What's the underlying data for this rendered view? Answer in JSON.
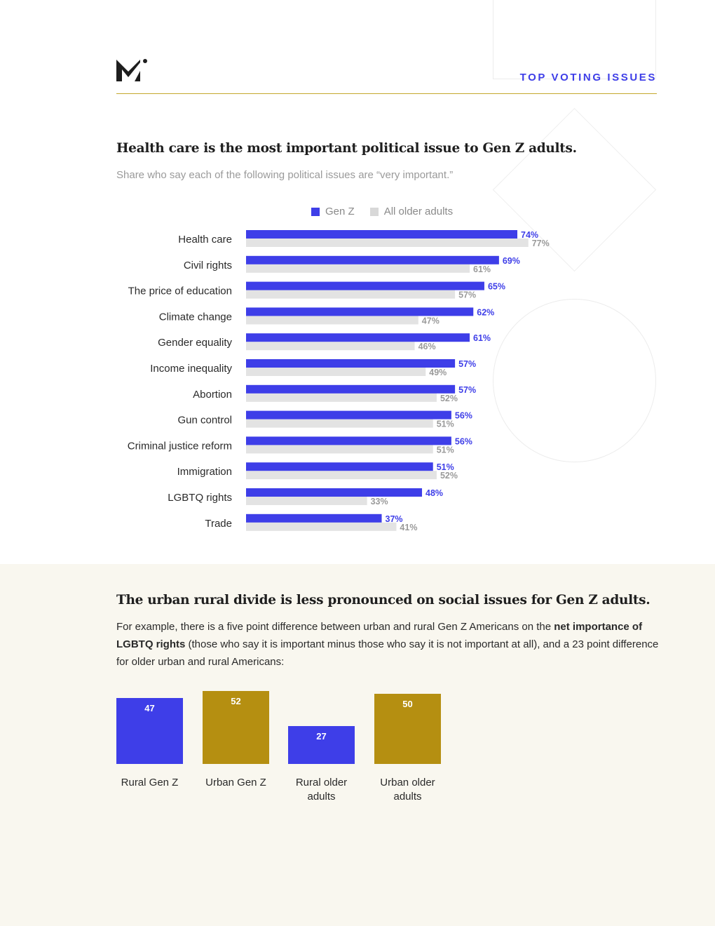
{
  "header": {
    "section_tag": "TOP VOTING ISSUES"
  },
  "colors": {
    "gen_z": "#3e3ee8",
    "older": "#e3e3e3",
    "older_label": "#9a9a9a",
    "urban": "#b58f11",
    "accent_rule": "#c5a72c"
  },
  "chart1": {
    "title": "Health care is the most important political issue to Gen Z adults.",
    "subtitle": "Share who say each of the following political issues are “very important.”"
  },
  "chart_data": [
    {
      "type": "bar",
      "orientation": "horizontal",
      "title": "Health care is the most important political issue to Gen Z adults.",
      "subtitle": "Share who say each of the following political issues are “very important.”",
      "legend_position": "top-center",
      "categories": [
        "Health care",
        "Civil rights",
        "The price of education",
        "Climate change",
        "Gender equality",
        "Income inequality",
        "Abortion",
        "Gun control",
        "Criminal justice reform",
        "Immigration",
        "LGBTQ rights",
        "Trade"
      ],
      "series": [
        {
          "name": "Gen Z",
          "values": [
            74,
            69,
            65,
            62,
            61,
            57,
            57,
            56,
            56,
            51,
            48,
            37
          ]
        },
        {
          "name": "All older adults",
          "values": [
            77,
            61,
            57,
            47,
            46,
            49,
            52,
            51,
            51,
            52,
            33,
            41
          ]
        }
      ],
      "value_suffix": "%",
      "xlim": [
        0,
        100
      ],
      "grid": false
    },
    {
      "type": "bar",
      "orientation": "vertical",
      "title": "The urban rural divide is less pronounced on social issues for Gen Z adults.",
      "categories": [
        "Rural Gen Z",
        "Urban Gen Z",
        "Rural older adults",
        "Urban older adults"
      ],
      "values": [
        47,
        52,
        27,
        50
      ],
      "ylim": [
        0,
        52
      ],
      "grid": false
    }
  ],
  "chart2": {
    "title": "The urban rural divide is less pronounced on social issues for Gen Z adults.",
    "body_pre": "For example, there is a five point difference between urban and rural Gen Z Americans on the ",
    "body_bold": "net importance of LGBTQ rights",
    "body_post": " (those who say it is important minus those who say it is not important at all), and a 23 point difference for older urban and rural Americans:",
    "bars": [
      {
        "label_line1": "Rural Gen Z",
        "label_line2": "",
        "value": "47"
      },
      {
        "label_line1": "Urban Gen Z",
        "label_line2": "",
        "value": "52"
      },
      {
        "label_line1": "Rural older",
        "label_line2": "adults",
        "value": "27"
      },
      {
        "label_line1": "Urban older",
        "label_line2": "adults",
        "value": "50"
      }
    ]
  }
}
